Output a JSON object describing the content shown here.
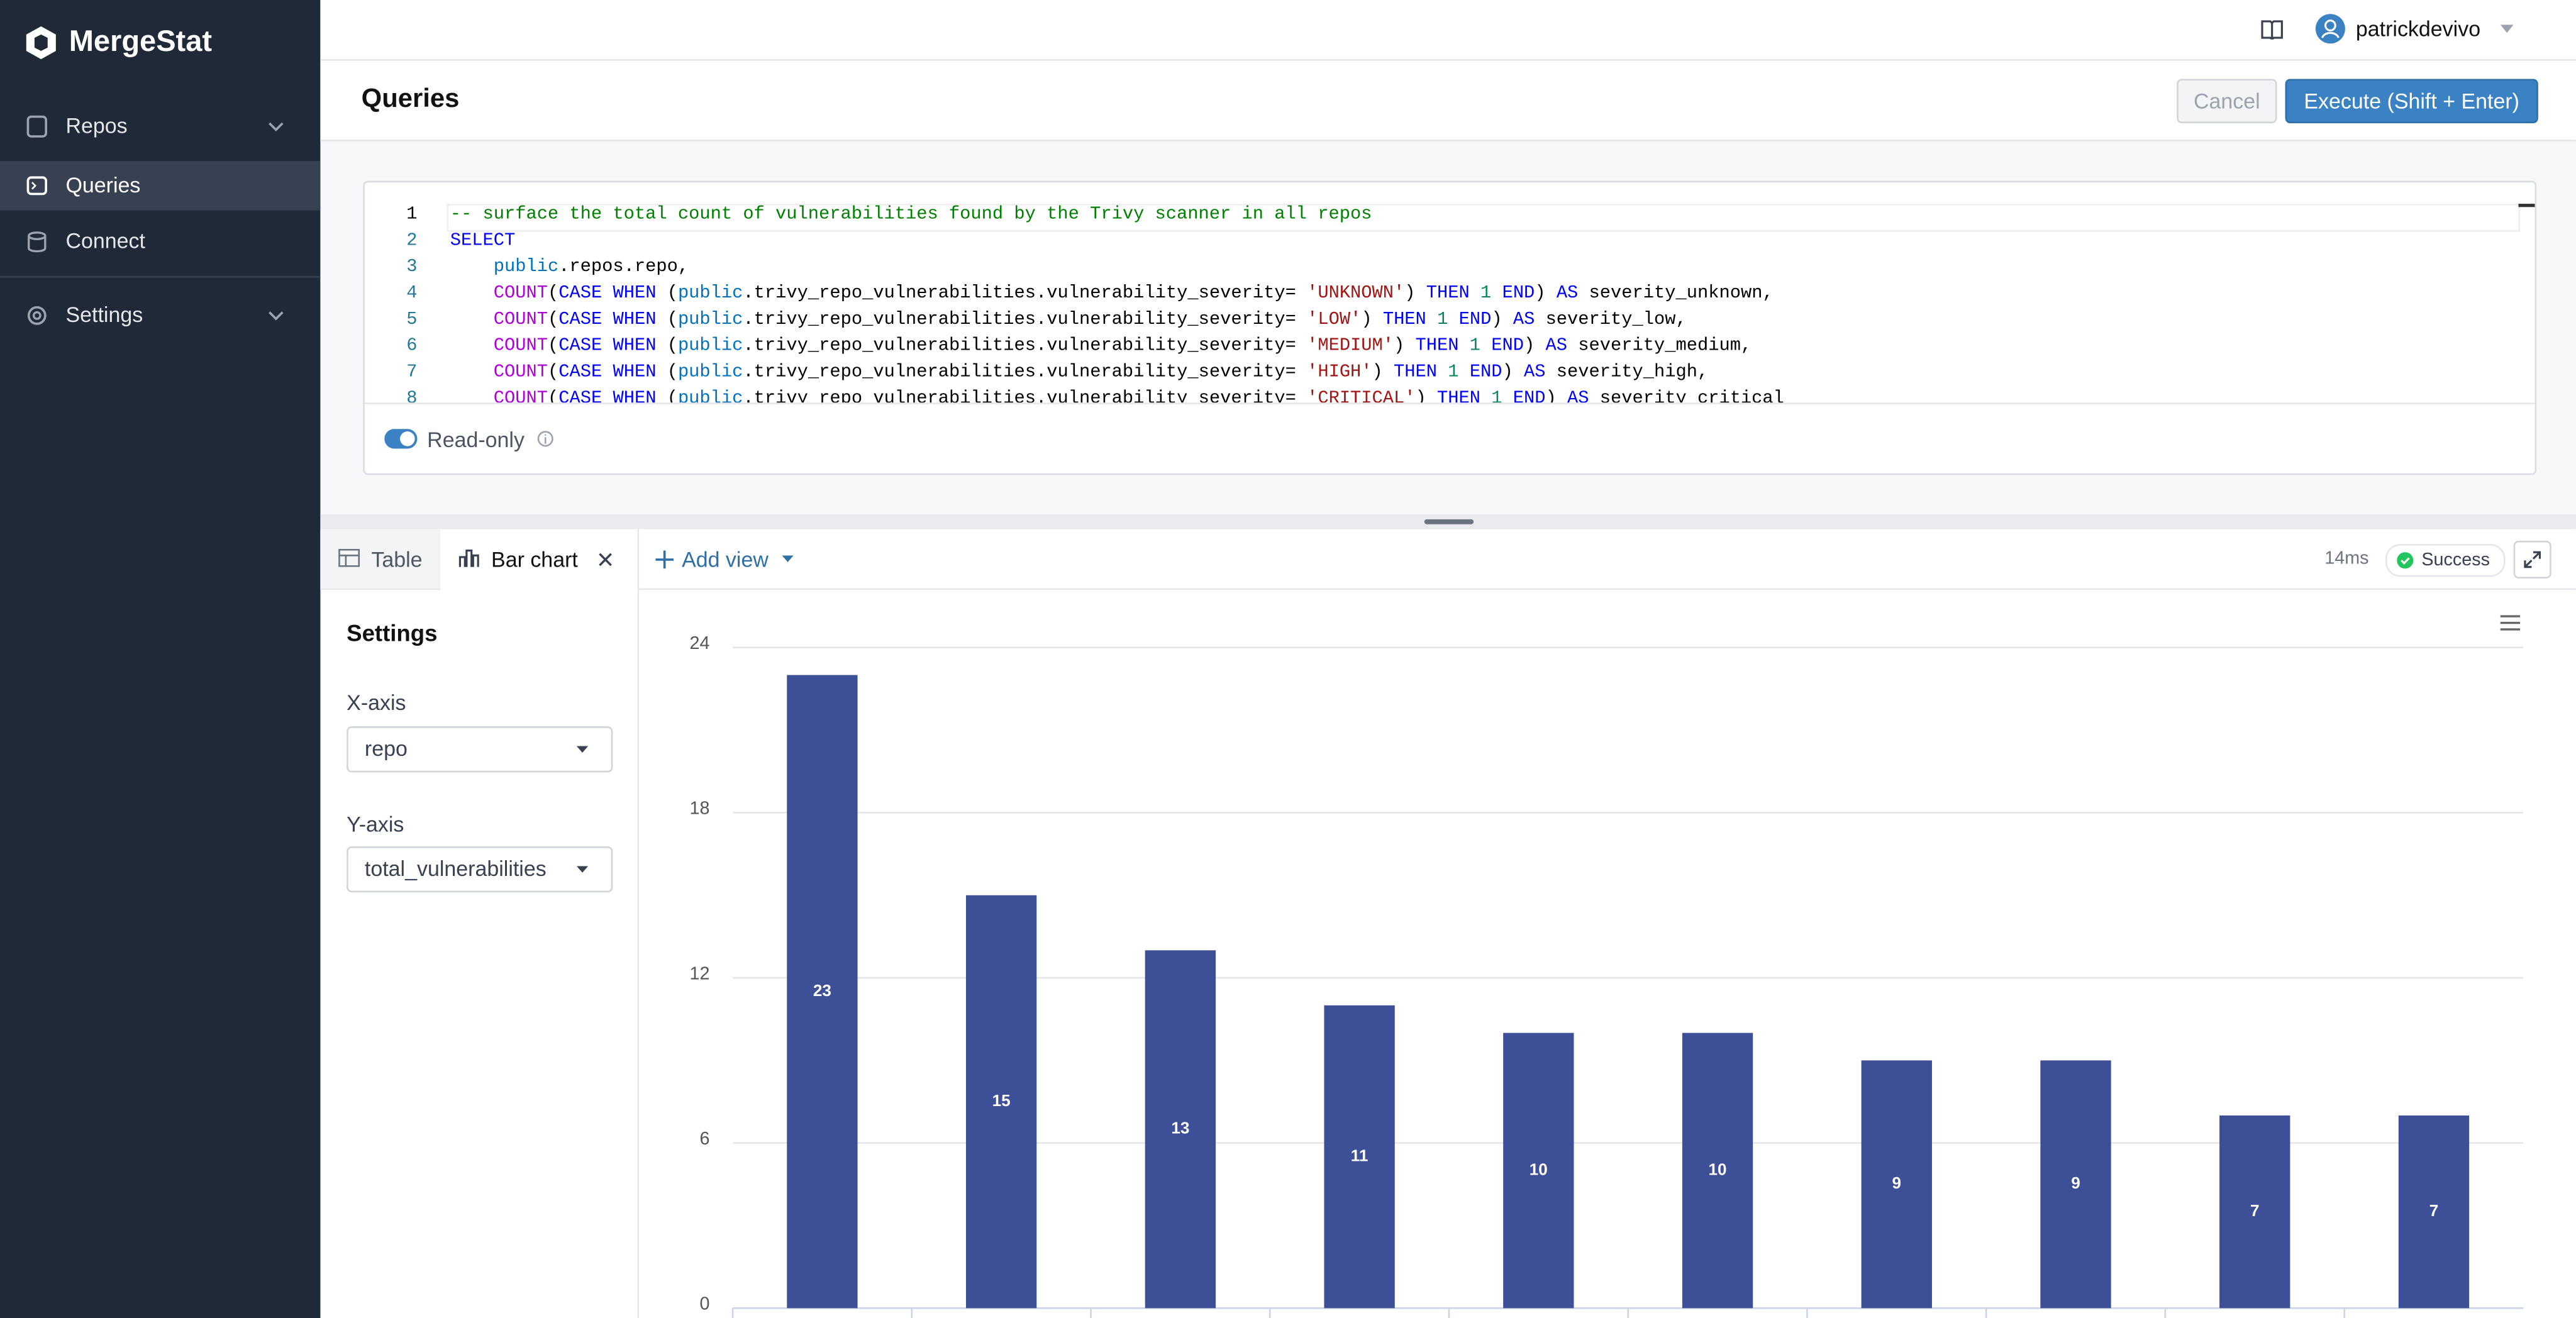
{
  "sidebar": {
    "brand": "MergeStat",
    "nav": [
      "Repos",
      "Queries",
      "Connect",
      "Settings"
    ]
  },
  "header": {
    "user": "patrickdevivo"
  },
  "toolbar": {
    "title": "Queries",
    "cancel": "Cancel",
    "execute": "Execute (Shift + Enter)"
  },
  "editor": {
    "lines": [
      {
        "number": 1,
        "code": "-- surface the total count of vulnerabilities found by the Trivy scanner in all repos"
      },
      {
        "number": 2,
        "code": "SELECT"
      },
      {
        "number": 3,
        "code": "    public.repos.repo,"
      },
      {
        "number": 4,
        "code": "    COUNT(CASE WHEN (public.trivy_repo_vulnerabilities.vulnerability_severity= 'UNKNOWN') THEN 1 END) AS severity_unknown,"
      },
      {
        "number": 5,
        "code": "    COUNT(CASE WHEN (public.trivy_repo_vulnerabilities.vulnerability_severity= 'LOW') THEN 1 END) AS severity_low,"
      },
      {
        "number": 6,
        "code": "    COUNT(CASE WHEN (public.trivy_repo_vulnerabilities.vulnerability_severity= 'MEDIUM') THEN 1 END) AS severity_medium,"
      },
      {
        "number": 7,
        "code": "    COUNT(CASE WHEN (public.trivy_repo_vulnerabilities.vulnerability_severity= 'HIGH') THEN 1 END) AS severity_high,"
      },
      {
        "number": 8,
        "code": "    COUNT(CASE WHEN (public.trivy_repo_vulnerabilities.vulnerability_severity= 'CRITICAL') THEN 1 END) AS severity_critical"
      }
    ],
    "read_only": "Read-only"
  },
  "results": {
    "tabs": [
      "Table",
      "Bar chart"
    ],
    "add_view": "Add view",
    "duration": "14ms",
    "status": "Success"
  },
  "settings": {
    "title": "Settings",
    "x_axis_label": "X-axis",
    "x_axis_value": "repo",
    "y_axis_label": "Y-axis",
    "y_axis_value": "total_vulnerabilities"
  },
  "chart_data": {
    "type": "bar",
    "categories": [
      null,
      null,
      null,
      null,
      null,
      null,
      null,
      null,
      null,
      null
    ],
    "values": [
      23,
      15,
      13,
      11,
      10,
      10,
      9,
      9,
      7,
      7
    ],
    "color": "#3d4f96",
    "ylim": [
      0,
      24
    ],
    "yticks": [
      0,
      6,
      12,
      18,
      24
    ],
    "grid": true
  }
}
